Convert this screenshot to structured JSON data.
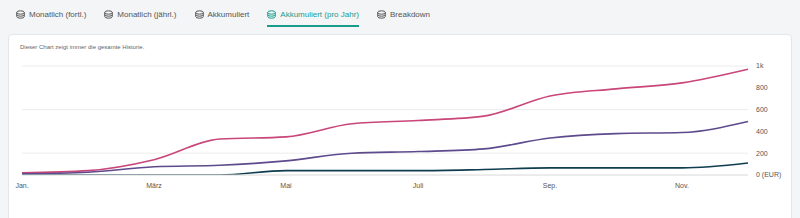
{
  "tabs": [
    {
      "label": "Monatlich (fortl.)",
      "active": false
    },
    {
      "label": "Monatlich (jährl.)",
      "active": false
    },
    {
      "label": "Akkumuliert",
      "active": false
    },
    {
      "label": "Akkumuliert (pro Jahr)",
      "active": true
    },
    {
      "label": "Breakdown",
      "active": false
    }
  ],
  "note": "Dieser Chart zeigt immer die gesamte Historie.",
  "chart_data": {
    "type": "line",
    "categories": [
      "Jan.",
      null,
      "März",
      null,
      "Mai",
      null,
      "Juli",
      null,
      "Sep.",
      null,
      "Nov.",
      null
    ],
    "series": [
      {
        "color": "#c9467a",
        "values": [
          20,
          40,
          140,
          330,
          350,
          470,
          500,
          540,
          725,
          790,
          845,
          970
        ]
      },
      {
        "color": "#5e4a8c",
        "values": [
          10,
          25,
          75,
          90,
          130,
          200,
          215,
          240,
          340,
          380,
          390,
          490
        ]
      },
      {
        "color": "#0f3d4f",
        "values": [
          0,
          0,
          0,
          0,
          40,
          40,
          40,
          50,
          65,
          65,
          65,
          110
        ]
      }
    ],
    "ylim": [
      0,
      1000
    ],
    "yticks": [
      {
        "value": 0,
        "label": "0 (EUR)"
      },
      200,
      400,
      600,
      800,
      {
        "value": 1000,
        "label": "1k"
      }
    ],
    "grid": true
  }
}
